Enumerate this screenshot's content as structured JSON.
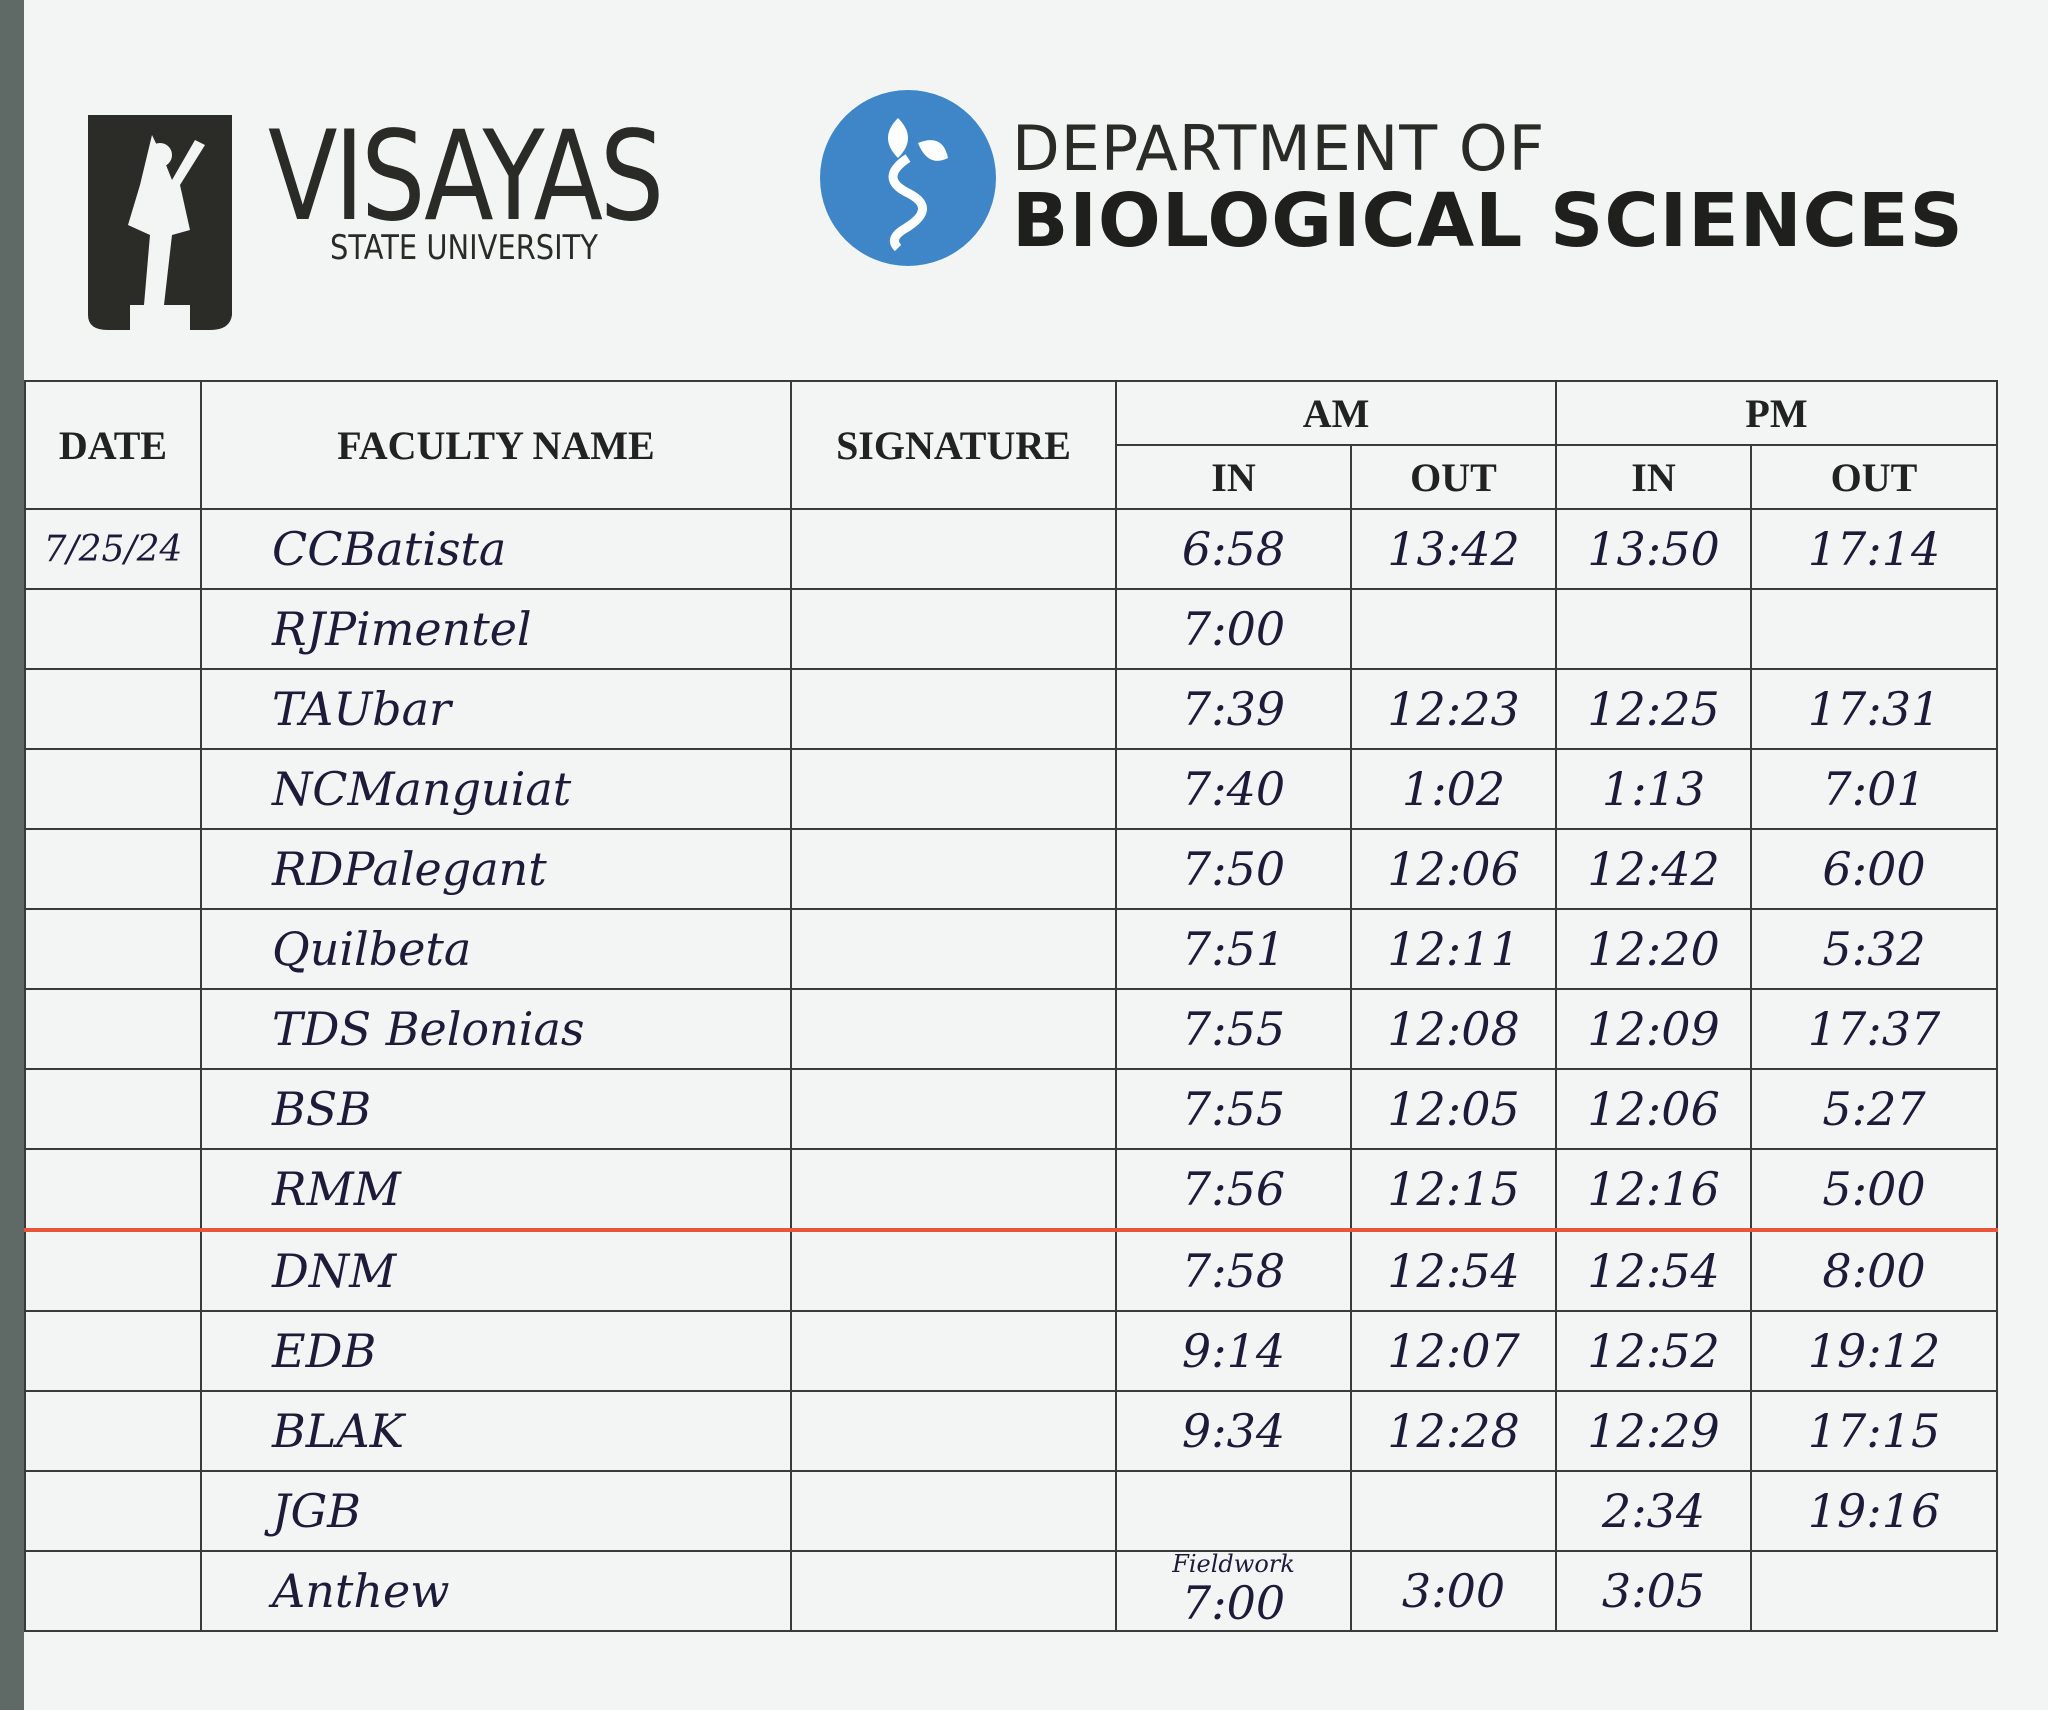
{
  "header": {
    "university": "VISAYAS",
    "university_sub": "STATE UNIVERSITY",
    "department_line1": "DEPARTMENT OF",
    "department_line2": "BIOLOGICAL SCIENCES"
  },
  "table": {
    "columns": {
      "date": "DATE",
      "faculty_name": "FACULTY NAME",
      "signature": "SIGNATURE",
      "am": "AM",
      "pm": "PM",
      "in": "IN",
      "out": "OUT"
    },
    "rows": [
      {
        "date": "7/25/24",
        "name": "CCBatista",
        "am_in": "6:58",
        "am_out": "13:42",
        "pm_in": "13:50",
        "pm_out": "17:14"
      },
      {
        "name": "RJPimentel",
        "am_in": "7:00"
      },
      {
        "name": "TAUbar",
        "am_in": "7:39",
        "am_out": "12:23",
        "pm_in": "12:25",
        "pm_out": "17:31"
      },
      {
        "name": "NCManguiat",
        "am_in": "7:40",
        "am_out": "1:02",
        "pm_in": "1:13",
        "pm_out": "7:01"
      },
      {
        "name": "RDPalegant",
        "am_in": "7:50",
        "am_out": "12:06",
        "pm_in": "12:42",
        "pm_out": "6:00"
      },
      {
        "name": "Quilbeta",
        "am_in": "7:51",
        "am_out": "12:11",
        "pm_in": "12:20",
        "pm_out": "5:32"
      },
      {
        "name": "TDS Belonias",
        "am_in": "7:55",
        "am_out": "12:08",
        "pm_in": "12:09",
        "pm_out": "17:37"
      },
      {
        "name": "BSB",
        "am_in": "7:55",
        "am_out": "12:05",
        "pm_in": "12:06",
        "pm_out": "5:27"
      },
      {
        "name": "RMM",
        "am_in": "7:56",
        "am_out": "12:15",
        "pm_in": "12:16",
        "pm_out": "5:00"
      },
      {
        "name": "DNM",
        "am_in": "7:58",
        "am_out": "12:54",
        "pm_in": "12:54",
        "pm_out": "8:00"
      },
      {
        "name": "EDB",
        "am_in": "9:14",
        "am_out": "12:07",
        "pm_in": "12:52",
        "pm_out": "19:12"
      },
      {
        "name": "BLAK",
        "am_in": "9:34",
        "am_out": "12:28",
        "pm_in": "12:29",
        "pm_out": "17:15"
      },
      {
        "name": "JGB",
        "pm_in": "2:34",
        "pm_out": "19:16"
      },
      {
        "name": "Anthew",
        "note": "Fieldwork",
        "am_in": "7:00",
        "am_out": "3:00",
        "pm_in": "3:05"
      }
    ]
  }
}
